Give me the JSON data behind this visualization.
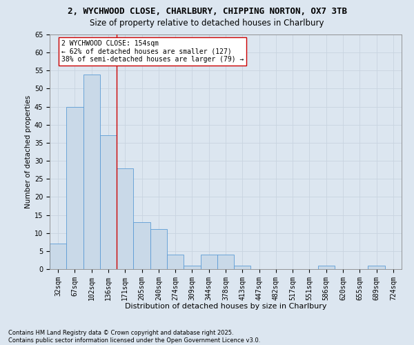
{
  "title_line1": "2, WYCHWOOD CLOSE, CHARLBURY, CHIPPING NORTON, OX7 3TB",
  "title_line2": "Size of property relative to detached houses in Charlbury",
  "xlabel": "Distribution of detached houses by size in Charlbury",
  "ylabel": "Number of detached properties",
  "bar_labels": [
    "32sqm",
    "67sqm",
    "102sqm",
    "136sqm",
    "171sqm",
    "205sqm",
    "240sqm",
    "274sqm",
    "309sqm",
    "344sqm",
    "378sqm",
    "413sqm",
    "447sqm",
    "482sqm",
    "517sqm",
    "551sqm",
    "586sqm",
    "620sqm",
    "655sqm",
    "689sqm",
    "724sqm"
  ],
  "bar_values": [
    7,
    45,
    54,
    37,
    28,
    13,
    11,
    4,
    1,
    4,
    4,
    1,
    0,
    0,
    0,
    0,
    1,
    0,
    0,
    1,
    0
  ],
  "bar_color": "#c9d9e8",
  "bar_edge_color": "#5b9bd5",
  "grid_color": "#c8d4e0",
  "background_color": "#dce6f0",
  "vline_x_index": 3.5,
  "vline_color": "#cc0000",
  "annotation_text": "2 WYCHWOOD CLOSE: 154sqm\n← 62% of detached houses are smaller (127)\n38% of semi-detached houses are larger (79) →",
  "annotation_box_color": "#ffffff",
  "annotation_box_edge": "#cc0000",
  "ylim": [
    0,
    65
  ],
  "yticks": [
    0,
    5,
    10,
    15,
    20,
    25,
    30,
    35,
    40,
    45,
    50,
    55,
    60,
    65
  ],
  "footnote": "Contains HM Land Registry data © Crown copyright and database right 2025.\nContains public sector information licensed under the Open Government Licence v3.0.",
  "title1_fontsize": 9,
  "title2_fontsize": 8.5,
  "xlabel_fontsize": 8,
  "ylabel_fontsize": 7.5,
  "tick_fontsize": 7,
  "annot_fontsize": 7,
  "footnote_fontsize": 6
}
